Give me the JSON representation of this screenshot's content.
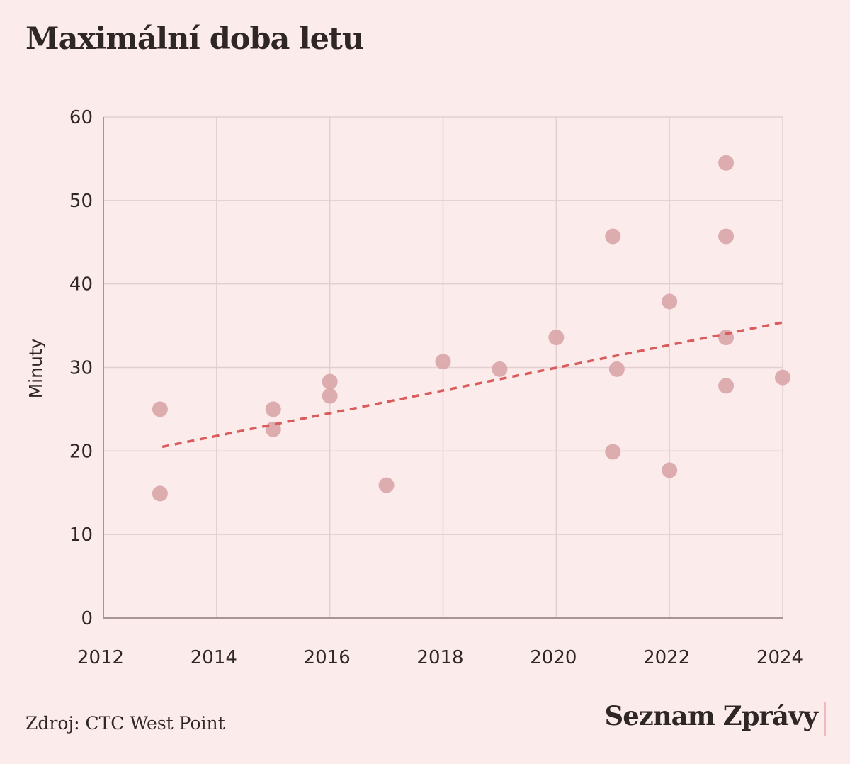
{
  "header": {
    "title": "Maximální doba letu"
  },
  "footer": {
    "source": "Zdroj: CTC West Point",
    "brand": "Seznam Zprávy"
  },
  "colors": {
    "background": "#fcebeb",
    "point": "#d9a5a8",
    "trend": "#d95b5b",
    "grid": "#e2cfd1",
    "axis": "#a89495",
    "text": "#2f2626"
  },
  "chart_data": {
    "type": "scatter",
    "title": "Maximální doba letu",
    "xlabel": "",
    "ylabel": "Minuty",
    "xlim": [
      2012,
      2024
    ],
    "ylim": [
      0,
      60
    ],
    "xticks": [
      2012,
      2014,
      2016,
      2018,
      2020,
      2022,
      2024
    ],
    "yticks": [
      0,
      10,
      20,
      30,
      40,
      50,
      60
    ],
    "grid": true,
    "legend": "none",
    "series": [
      {
        "name": "Maximální doba letu",
        "points": [
          {
            "x": 2013,
            "y": 25.0
          },
          {
            "x": 2013,
            "y": 14.9
          },
          {
            "x": 2015,
            "y": 25.0
          },
          {
            "x": 2015,
            "y": 22.6
          },
          {
            "x": 2016,
            "y": 28.3
          },
          {
            "x": 2016,
            "y": 26.6
          },
          {
            "x": 2017,
            "y": 15.9
          },
          {
            "x": 2018,
            "y": 30.7
          },
          {
            "x": 2019,
            "y": 29.8
          },
          {
            "x": 2020,
            "y": 33.6
          },
          {
            "x": 2021,
            "y": 45.7
          },
          {
            "x": 2021.07,
            "y": 29.8
          },
          {
            "x": 2021,
            "y": 19.9
          },
          {
            "x": 2022,
            "y": 37.9
          },
          {
            "x": 2022,
            "y": 17.7
          },
          {
            "x": 2023,
            "y": 54.5
          },
          {
            "x": 2023,
            "y": 45.7
          },
          {
            "x": 2023,
            "y": 33.6
          },
          {
            "x": 2023,
            "y": 27.8
          },
          {
            "x": 2024,
            "y": 28.8
          }
        ]
      }
    ],
    "trendline": {
      "style": "dashed",
      "from": {
        "x": 2013.04,
        "y": 20.5
      },
      "to": {
        "x": 2024,
        "y": 35.4
      }
    }
  }
}
